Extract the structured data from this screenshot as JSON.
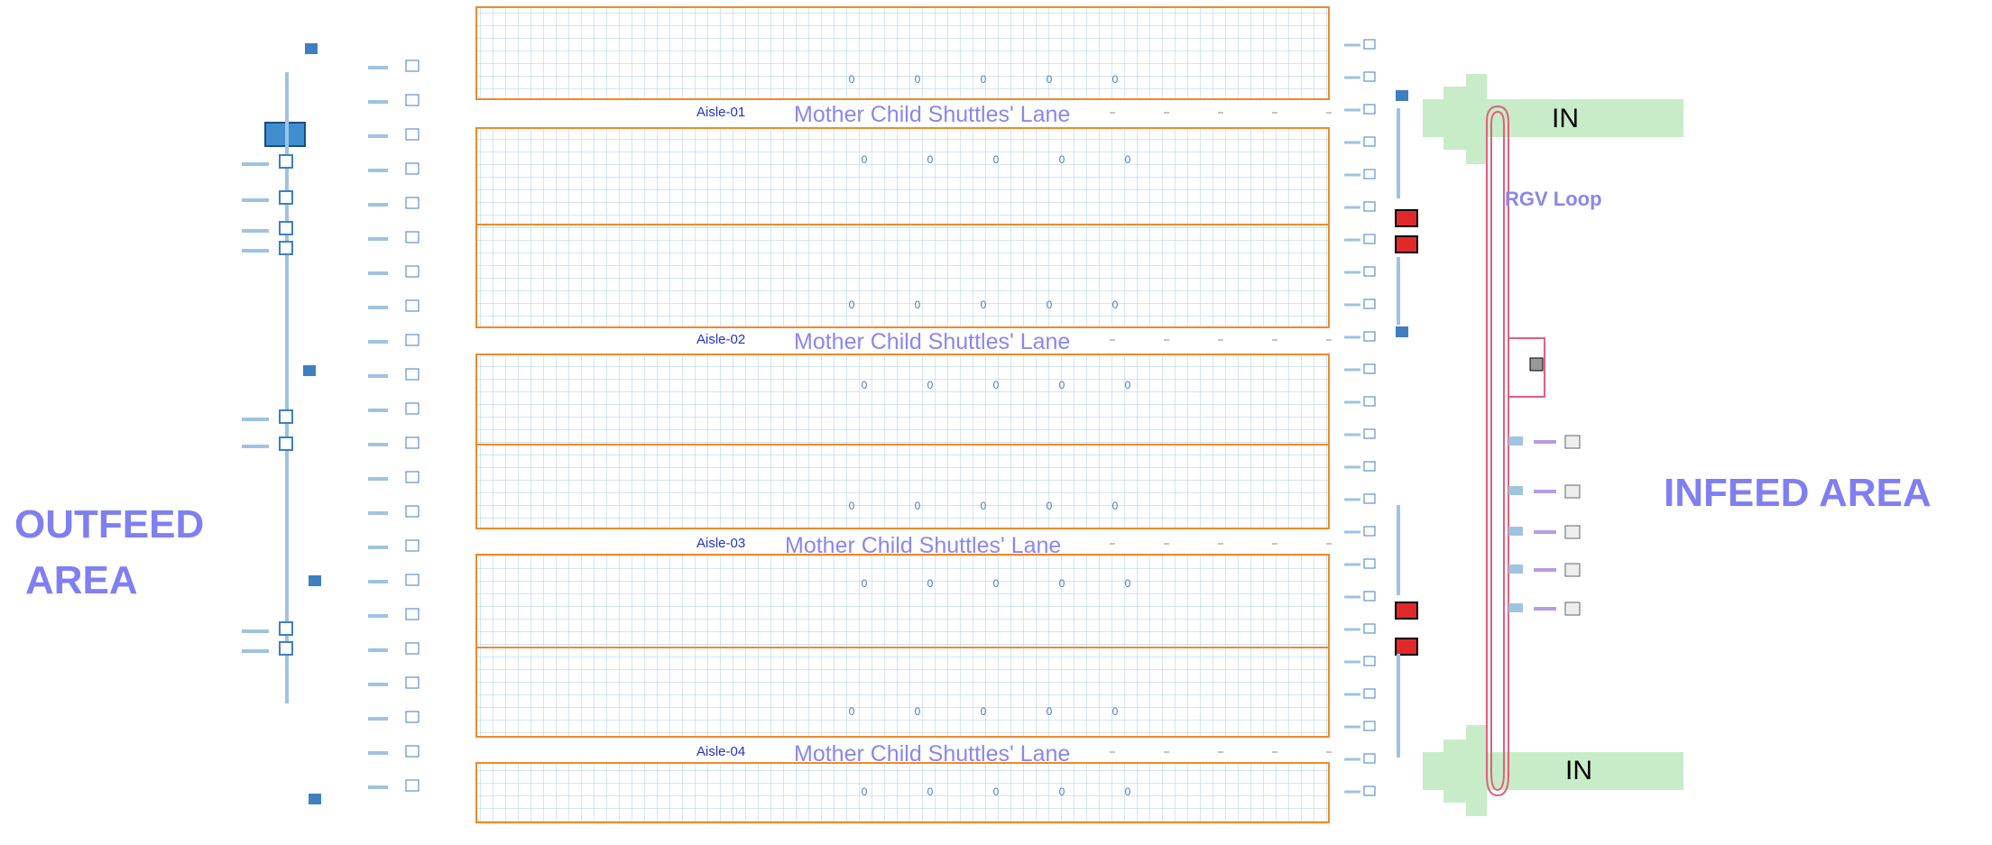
{
  "lanes": [
    {
      "aisle": "Aisle-01",
      "label": "Mother Child Shuttles' Lane"
    },
    {
      "aisle": "Aisle-02",
      "label": "Mother Child Shuttles' Lane"
    },
    {
      "aisle": "Aisle-03",
      "label": "Mother Child Shuttles' Lane"
    },
    {
      "aisle": "Aisle-04",
      "label": "Mother Child Shuttles' Lane"
    }
  ],
  "areas": {
    "infeed": "INFEED AREA",
    "outfeed_line1": "OUTFEED",
    "outfeed_line2": "AREA",
    "in_top": "IN",
    "in_bottom": "IN",
    "rgv": "RGV Loop"
  },
  "counter_rows": [
    [
      0,
      0,
      0,
      0,
      0
    ],
    [
      0,
      0,
      0,
      0,
      0
    ],
    [
      0,
      0,
      0,
      0,
      0
    ],
    [
      0,
      0,
      0,
      0,
      0
    ],
    [
      0,
      0,
      0,
      0,
      0
    ],
    [
      0,
      0,
      0,
      0,
      0
    ],
    [
      0,
      0,
      0,
      0,
      0
    ],
    [
      0,
      0,
      0,
      0,
      0
    ]
  ]
}
